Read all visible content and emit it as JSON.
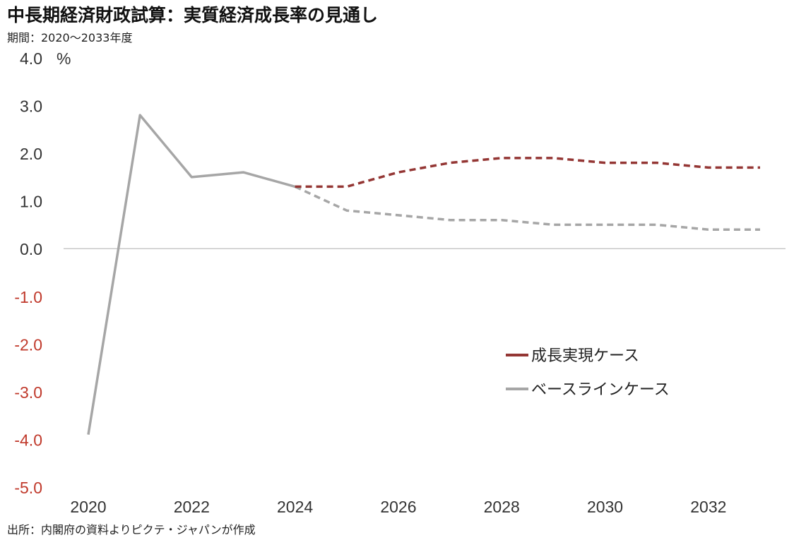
{
  "title": "中長期経済財政試算：実質経済成長率の見通し",
  "subtitle": "期間：2020～2033年度",
  "source": "出所：内閣府の資料よりピクテ・ジャパンが作成",
  "colors": {
    "growth_case": "#943634",
    "baseline_case": "#a6a6a6",
    "negative_tick": "#c0392b",
    "positive_tick": "#333333",
    "zero_line": "#bfbfbf"
  },
  "chart_data": {
    "type": "line",
    "x": [
      2020,
      2021,
      2022,
      2023,
      2024,
      2025,
      2026,
      2027,
      2028,
      2029,
      2030,
      2031,
      2032,
      2033
    ],
    "xticks": [
      "2020",
      "2022",
      "2024",
      "2026",
      "2028",
      "2030",
      "2032"
    ],
    "yticks": [
      "4.0",
      "3.0",
      "2.0",
      "1.0",
      "0.0",
      "-1.0",
      "-2.0",
      "-3.0",
      "-4.0",
      "-5.0"
    ],
    "ylim": [
      -5.0,
      4.0
    ],
    "yunit": "%",
    "grid": false,
    "legend_position": "right",
    "series": [
      {
        "name": "成長実現ケース",
        "color": "#943634",
        "segments": [
          {
            "style": "dashed",
            "x": [
              2024,
              2025,
              2026,
              2027,
              2028,
              2029,
              2030,
              2031,
              2032,
              2033
            ],
            "values": [
              1.3,
              1.3,
              1.6,
              1.8,
              1.9,
              1.9,
              1.8,
              1.8,
              1.7,
              1.7
            ]
          }
        ]
      },
      {
        "name": "ベースラインケース",
        "color": "#a6a6a6",
        "segments": [
          {
            "style": "solid",
            "x": [
              2020,
              2021,
              2022,
              2023,
              2024
            ],
            "values": [
              -3.9,
              2.8,
              1.5,
              1.6,
              1.3
            ]
          },
          {
            "style": "dashed",
            "x": [
              2024,
              2025,
              2026,
              2027,
              2028,
              2029,
              2030,
              2031,
              2032,
              2033
            ],
            "values": [
              1.3,
              0.8,
              0.7,
              0.6,
              0.6,
              0.5,
              0.5,
              0.5,
              0.4,
              0.4
            ]
          }
        ]
      }
    ]
  }
}
